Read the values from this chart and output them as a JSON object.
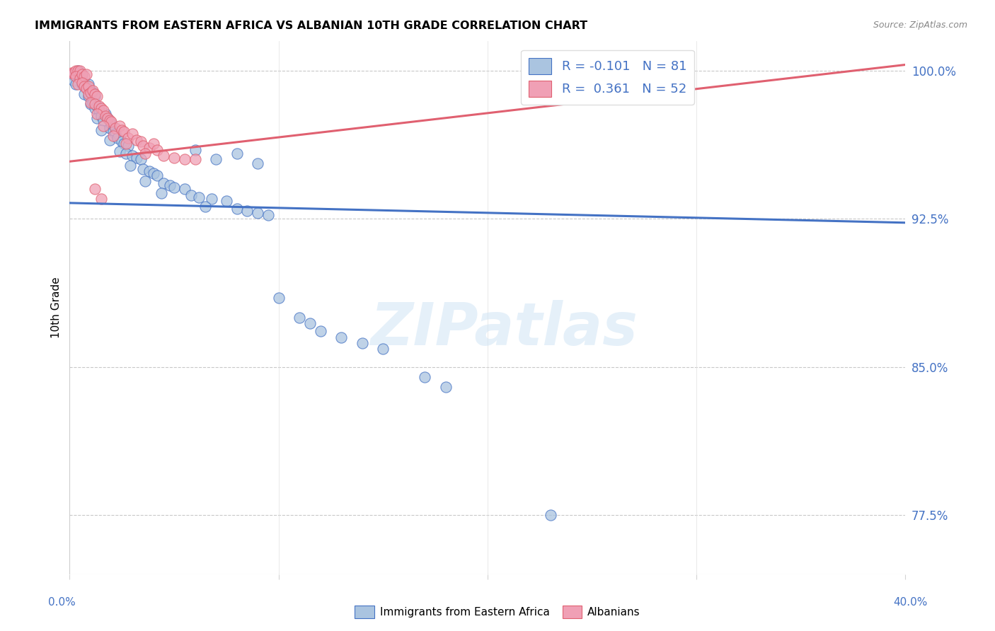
{
  "title": "IMMIGRANTS FROM EASTERN AFRICA VS ALBANIAN 10TH GRADE CORRELATION CHART",
  "source": "Source: ZipAtlas.com",
  "ylabel": "10th Grade",
  "yticks": [
    0.775,
    0.85,
    0.925,
    1.0
  ],
  "ytick_labels": [
    "77.5%",
    "85.0%",
    "92.5%",
    "100.0%"
  ],
  "xlim": [
    0.0,
    0.4
  ],
  "ylim": [
    0.745,
    1.015
  ],
  "blue_R": -0.101,
  "blue_N": 81,
  "pink_R": 0.361,
  "pink_N": 52,
  "blue_color": "#aac4e0",
  "pink_color": "#f0a0b5",
  "blue_line_color": "#4472c4",
  "pink_line_color": "#e06070",
  "bottom_legend_blue": "Immigrants from Eastern Africa",
  "bottom_legend_pink": "Albanians",
  "watermark": "ZIPatlas",
  "blue_line_x0": 0.0,
  "blue_line_y0": 0.933,
  "blue_line_x1": 0.4,
  "blue_line_y1": 0.923,
  "pink_line_x0": 0.0,
  "pink_line_y0": 0.954,
  "pink_line_x1": 0.4,
  "pink_line_y1": 1.003
}
